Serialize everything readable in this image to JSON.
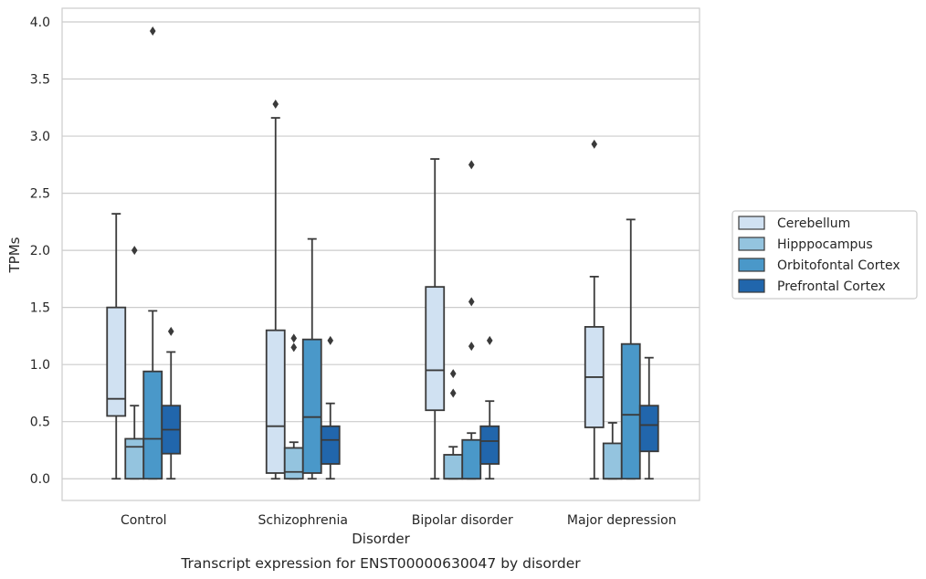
{
  "caption": "Transcript expression for ENST00000630047 by disorder",
  "chart_data": {
    "type": "boxplot",
    "xlabel": "Disorder",
    "ylabel": "TPMs",
    "ylim": [
      -0.19,
      4.12
    ],
    "yticks": [
      0.0,
      0.5,
      1.0,
      1.5,
      2.0,
      2.5,
      3.0,
      3.5,
      4.0
    ],
    "ytick_labels": [
      "0.0",
      "0.5",
      "1.0",
      "1.5",
      "2.0",
      "2.5",
      "3.0",
      "3.5",
      "4.0"
    ],
    "grid": "horizontal",
    "legend_position": "right",
    "categories": [
      "Control",
      "Schizophrenia",
      "Bipolar disorder",
      "Major depression"
    ],
    "series": [
      {
        "name": "Cerebellum",
        "color": "#d0e1f2",
        "boxes": [
          {
            "whislo": 0.0,
            "q1": 0.55,
            "med": 0.7,
            "q3": 1.5,
            "whishi": 2.32,
            "fliers": []
          },
          {
            "whislo": 0.0,
            "q1": 0.05,
            "med": 0.46,
            "q3": 1.3,
            "whishi": 3.16,
            "fliers": [
              3.28
            ]
          },
          {
            "whislo": 0.0,
            "q1": 0.6,
            "med": 0.95,
            "q3": 1.68,
            "whishi": 2.8,
            "fliers": []
          },
          {
            "whislo": 0.0,
            "q1": 0.45,
            "med": 0.89,
            "q3": 1.33,
            "whishi": 1.77,
            "fliers": [
              2.93
            ]
          }
        ]
      },
      {
        "name": "Hipppocampus",
        "color": "#94c4df",
        "boxes": [
          {
            "whislo": 0.0,
            "q1": 0.0,
            "med": 0.28,
            "q3": 0.35,
            "whishi": 0.64,
            "fliers": [
              2.0
            ]
          },
          {
            "whislo": 0.0,
            "q1": 0.0,
            "med": 0.06,
            "q3": 0.27,
            "whishi": 0.32,
            "fliers": [
              1.23,
              1.15
            ]
          },
          {
            "whislo": 0.0,
            "q1": 0.0,
            "med": 0.0,
            "q3": 0.21,
            "whishi": 0.28,
            "fliers": [
              0.92,
              0.75
            ]
          },
          {
            "whislo": 0.0,
            "q1": 0.0,
            "med": 0.0,
            "q3": 0.31,
            "whishi": 0.49,
            "fliers": []
          }
        ]
      },
      {
        "name": "Orbitofontal Cortex",
        "color": "#4a98c9",
        "boxes": [
          {
            "whislo": 0.0,
            "q1": 0.0,
            "med": 0.35,
            "q3": 0.94,
            "whishi": 1.47,
            "fliers": [
              3.92
            ]
          },
          {
            "whislo": 0.0,
            "q1": 0.05,
            "med": 0.54,
            "q3": 1.22,
            "whishi": 2.1,
            "fliers": []
          },
          {
            "whislo": 0.0,
            "q1": 0.0,
            "med": 0.0,
            "q3": 0.34,
            "whishi": 0.4,
            "fliers": [
              2.75,
              1.55,
              1.16
            ]
          },
          {
            "whislo": 0.0,
            "q1": 0.0,
            "med": 0.56,
            "q3": 1.18,
            "whishi": 2.27,
            "fliers": []
          }
        ]
      },
      {
        "name": "Prefrontal Cortex",
        "color": "#2166ac",
        "boxes": [
          {
            "whislo": 0.0,
            "q1": 0.22,
            "med": 0.43,
            "q3": 0.64,
            "whishi": 1.11,
            "fliers": [
              1.29
            ]
          },
          {
            "whislo": 0.0,
            "q1": 0.13,
            "med": 0.34,
            "q3": 0.46,
            "whishi": 0.66,
            "fliers": [
              1.21
            ]
          },
          {
            "whislo": 0.0,
            "q1": 0.13,
            "med": 0.33,
            "q3": 0.46,
            "whishi": 0.68,
            "fliers": [
              1.21
            ]
          },
          {
            "whislo": 0.0,
            "q1": 0.24,
            "med": 0.47,
            "q3": 0.64,
            "whishi": 1.06,
            "fliers": []
          }
        ]
      }
    ]
  }
}
